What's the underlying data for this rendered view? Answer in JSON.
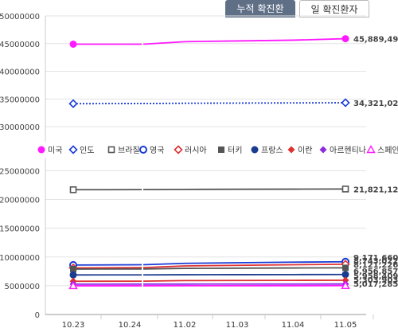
{
  "tabs": [
    {
      "label": "누적 확진환자",
      "active": true
    },
    {
      "label": "일 확진환자",
      "active": false
    }
  ],
  "chart_data": {
    "type": "line",
    "categories": [
      "10.23",
      "10.24",
      "11.02",
      "11.03",
      "11.04",
      "11.05"
    ],
    "ylim": [
      0,
      50000000
    ],
    "y_ticks": [
      "0",
      "5000000",
      "10000000",
      "15000000",
      "20000000",
      "25000000",
      "30000000",
      "35000000",
      "40000000",
      "45000000",
      "50000000"
    ],
    "y_broken_axis": {
      "lower_max": 27000000,
      "upper_min": 28000000
    },
    "grid": true,
    "legend_position": "middle",
    "series": [
      {
        "name": "미국",
        "color": "#ff19ff",
        "marker": "circle-filled",
        "values": [
          44900000,
          44900000,
          45350000,
          45480000,
          45620000,
          45889496
        ],
        "end_label": "45,889,496"
      },
      {
        "name": "인도",
        "color": "#1a3bd6",
        "marker": "diamond-open",
        "values": [
          34150000,
          34180000,
          34230000,
          34260000,
          34290000,
          34321025
        ],
        "end_label": "34,321,025"
      },
      {
        "name": "브라질",
        "color": "#555555",
        "marker": "square-open",
        "values": [
          21700000,
          21720000,
          21760000,
          21780000,
          21800000,
          21821124
        ],
        "end_label": "21,821,124"
      },
      {
        "name": "영국",
        "color": "#1a3bd6",
        "marker": "circle-open",
        "values": [
          8600000,
          8650000,
          8900000,
          9000000,
          9100000,
          9171660
        ],
        "end_label": "9,171,660"
      },
      {
        "name": "러시아",
        "color": "#e03030",
        "marker": "diamond-open",
        "values": [
          8100000,
          8150000,
          8450000,
          8550000,
          8650000,
          8743022
        ],
        "end_label": "8,743,022"
      },
      {
        "name": "터키",
        "color": "#555555",
        "marker": "square-filled",
        "values": [
          7900000,
          7920000,
          8020000,
          8060000,
          8090000,
          8121226
        ],
        "end_label": "8,121,226"
      },
      {
        "name": "프랑스",
        "color": "#1a3b8f",
        "marker": "circle-filled",
        "values": [
          6880000,
          6890000,
          6915000,
          6930000,
          6945000,
          6956857
        ],
        "end_label": "6,956,857"
      },
      {
        "name": "이란",
        "color": "#e03030",
        "marker": "diamond-filled",
        "values": [
          5780000,
          5800000,
          5900000,
          5920000,
          5940000,
          5958409
        ],
        "end_label": "5,958,409"
      },
      {
        "name": "아르헨티나",
        "color": "#8a2be2",
        "marker": "diamond-filled",
        "values": [
          5280000,
          5285000,
          5290000,
          5295000,
          5300000,
          5303903
        ],
        "end_label": "5,303,903"
      },
      {
        "name": "스페인",
        "color": "#ff19ff",
        "marker": "triangle-open",
        "values": [
          4990000,
          4995000,
          5000000,
          5005000,
          5010000,
          5017285
        ],
        "end_label": "5,017,285"
      }
    ]
  }
}
